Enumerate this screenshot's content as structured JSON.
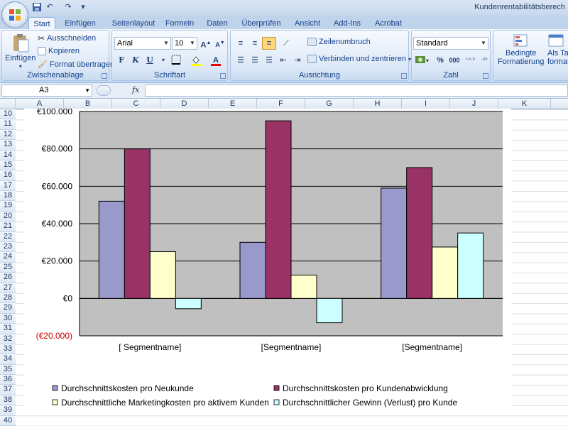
{
  "window": {
    "title": "Kundenrentabilitätsberech"
  },
  "tabs": [
    {
      "label": "Start",
      "active": true
    },
    {
      "label": "Einfügen"
    },
    {
      "label": "Seitenlayout"
    },
    {
      "label": "Formeln"
    },
    {
      "label": "Daten"
    },
    {
      "label": "Überprüfen"
    },
    {
      "label": "Ansicht"
    },
    {
      "label": "Add-Ins"
    },
    {
      "label": "Acrobat"
    }
  ],
  "ribbon": {
    "clipboard": {
      "paste": "Einfügen",
      "cut": "Ausschneiden",
      "copy": "Kopieren",
      "format_painter": "Format übertragen",
      "label": "Zwischenablage"
    },
    "font": {
      "name": "Arial",
      "size": "10",
      "bold": "F",
      "italic": "K",
      "underline": "U",
      "label": "Schriftart"
    },
    "alignment": {
      "wrap": "Zeilenumbruch",
      "merge": "Verbinden und zentrieren",
      "label": "Ausrichtung"
    },
    "number": {
      "format": "Standard",
      "percent": "%",
      "thousands": "000",
      "label": "Zahl"
    },
    "styles": {
      "cond_format_1": "Bedingte",
      "cond_format_2": "Formatierung",
      "as_table_1": "Als Tab",
      "as_table_2": "formati"
    }
  },
  "formula_bar": {
    "name_box": "A3",
    "fx": "fx",
    "value": ""
  },
  "columns": [
    "A",
    "B",
    "C",
    "D",
    "E",
    "F",
    "G",
    "H",
    "I",
    "J",
    "K"
  ],
  "rows": [
    "10",
    "11",
    "12",
    "13",
    "14",
    "15",
    "16",
    "17",
    "18",
    "19",
    "20",
    "21",
    "22",
    "23",
    "24",
    "25",
    "26",
    "27",
    "28",
    "29",
    "30",
    "31",
    "32",
    "33",
    "34",
    "35",
    "36",
    "37",
    "38",
    "39",
    "40"
  ],
  "chart_data": {
    "type": "bar",
    "categories": [
      "[ Segmentname]",
      "[Segmentname]",
      "[Segmentname]"
    ],
    "series": [
      {
        "name": "Durchschnittskosten pro Neukunde",
        "values": [
          52000,
          30000,
          59000
        ],
        "color": "#9999cc"
      },
      {
        "name": "Durchschnittskosten pro Kundenabwicklung",
        "values": [
          80000,
          95000,
          70000
        ],
        "color": "#993366"
      },
      {
        "name": "Durchschnittliche Marketingkosten pro aktivem  Kunden",
        "values": [
          25000,
          12500,
          27500
        ],
        "color": "#ffffcc"
      },
      {
        "name": "Durchschnittlicher Gewinn (Verlust) pro Kunde",
        "values": [
          -5500,
          -13000,
          35000
        ],
        "color": "#ccffff"
      }
    ],
    "ylim": [
      -20000,
      100000
    ],
    "yticks": [
      -20000,
      0,
      20000,
      40000,
      60000,
      80000,
      100000
    ],
    "ytick_labels": [
      "(€20.000)",
      "€0",
      "€20.000",
      "€40.000",
      "€60.000",
      "€80.000",
      "€100.000"
    ],
    "negative_label_color": "#cc0000",
    "plot_background": "#c0c0c0",
    "grid": true,
    "legend_placement": "bottom"
  }
}
